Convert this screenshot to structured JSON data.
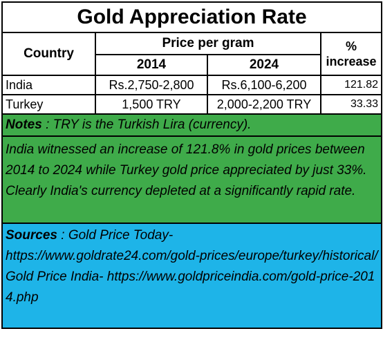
{
  "title": "Gold Appreciation Rate",
  "headers": {
    "country": "Country",
    "price_per_gram": "Price per gram",
    "year_2014": "2014",
    "year_2024": "2024",
    "pct_line1": "%",
    "pct_line2": "increase"
  },
  "rows": [
    {
      "country": "India",
      "p2014": "Rs.2,750-2,800",
      "p2024": "Rs.6,100-6,200",
      "pct": "121.82"
    },
    {
      "country": "Turkey",
      "p2014": "1,500 TRY",
      "p2024": "2,000-2,200 TRY",
      "pct": "33.33"
    }
  ],
  "notes": {
    "label": "Notes",
    "text": " : TRY is the Turkish Lira (currency)."
  },
  "analysis": "India witnessed an increase of 121.8% in gold prices between 2014 to 2024 while Turkey gold price appreciated by just 33%.  Clearly India's currency depleted at a significantly rapid rate.",
  "sources": {
    "label": "Sources",
    "text_line1": " : Gold Price Today-",
    "text_line2": "https://www.goldrate24.com/gold-prices/europe/turkey/historical/",
    "text_line3": "Gold Price India- https://www.goldpriceindia.com/gold-price-2014.php"
  },
  "colors": {
    "notes_bg": "#3fab4a",
    "sources_bg": "#1eb4e8"
  }
}
